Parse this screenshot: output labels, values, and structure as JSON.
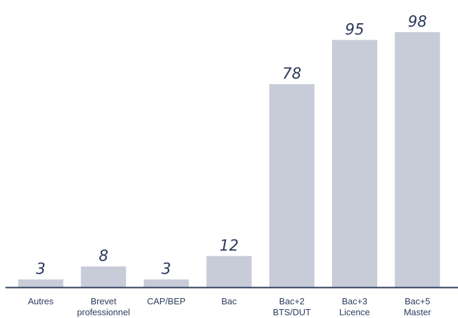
{
  "chart_data": {
    "type": "bar",
    "categories": [
      [
        "Autres"
      ],
      [
        "Brevet",
        "professionnel"
      ],
      [
        "CAP/BEP"
      ],
      [
        "Bac"
      ],
      [
        "Bac+2",
        "BTS/DUT"
      ],
      [
        "Bac+3",
        "Licence"
      ],
      [
        "Bac+5",
        "Master"
      ]
    ],
    "values": [
      3,
      8,
      3,
      12,
      78,
      95,
      98
    ],
    "value_labels": [
      "3",
      "8",
      "3",
      "12",
      "78",
      "95",
      "98"
    ],
    "title": "",
    "xlabel": "",
    "ylabel": "",
    "ylim": [
      0,
      98
    ],
    "grid": false,
    "bar_color": "#c8ccd8",
    "axis_color": "#2b3a5c",
    "text_color": "#2b3a5c"
  }
}
